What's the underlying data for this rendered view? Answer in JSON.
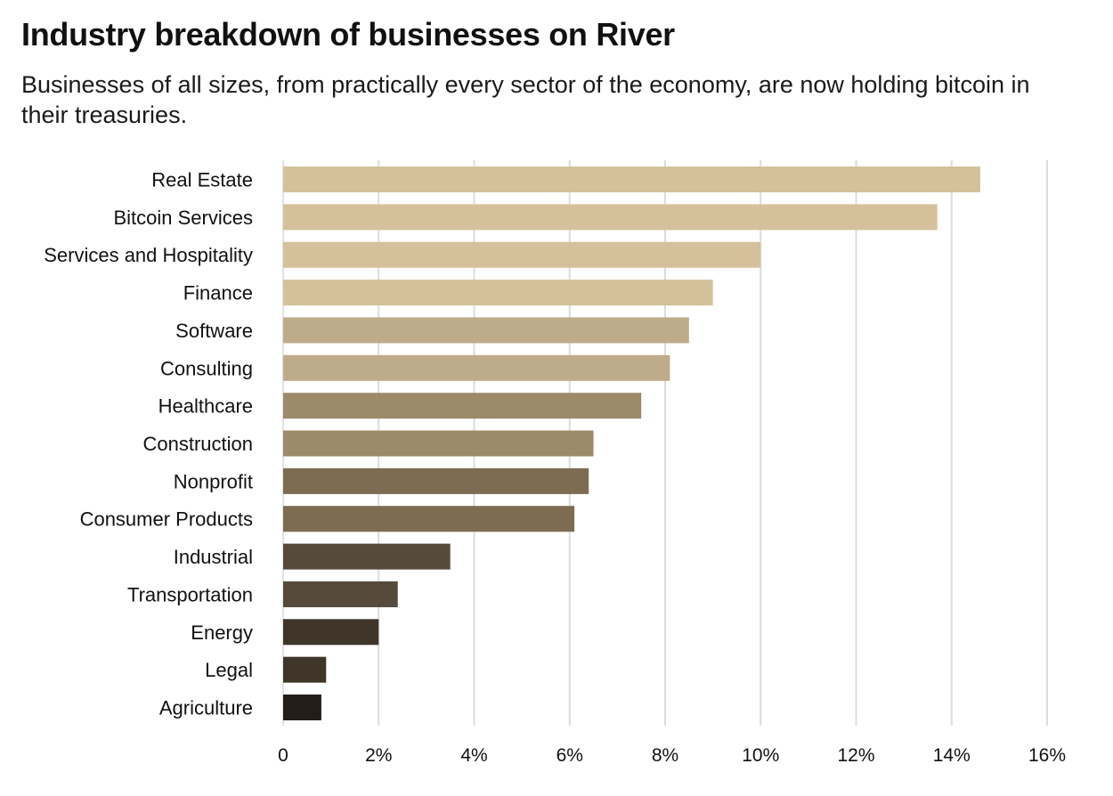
{
  "header": {
    "title": "Industry breakdown of businesses on River",
    "subtitle": "Businesses of all sizes, from practically every sector of the economy, are now holding bitcoin in their treasuries."
  },
  "chart_data": {
    "type": "bar",
    "orientation": "horizontal",
    "title": "Industry breakdown of businesses on River",
    "subtitle": "Businesses of all sizes, from practically every sector of the economy, are now holding bitcoin in their treasuries.",
    "xlabel": "",
    "ylabel": "",
    "xlim": [
      0,
      16
    ],
    "grid": true,
    "unit": "%",
    "categories": [
      "Real Estate",
      "Bitcoin Services",
      "Services and Hospitality",
      "Finance",
      "Software",
      "Consulting",
      "Healthcare",
      "Construction",
      "Nonprofit",
      "Consumer Products",
      "Industrial",
      "Transportation",
      "Energy",
      "Legal",
      "Agriculture"
    ],
    "values": [
      14.6,
      13.7,
      10.0,
      9.0,
      8.5,
      8.1,
      7.5,
      6.5,
      6.4,
      6.1,
      3.5,
      2.4,
      2.0,
      0.9,
      0.8
    ],
    "colors": [
      "#D4C19B",
      "#D4C19B",
      "#D4C19B",
      "#D4C19B",
      "#BEAB8A",
      "#BEAB8A",
      "#9C8A6B",
      "#9C8A6B",
      "#7D6B52",
      "#7D6B52",
      "#554A3B",
      "#554A3B",
      "#3F3529",
      "#3F3529",
      "#221D17"
    ],
    "ticks": [
      {
        "value": 0,
        "label": "0"
      },
      {
        "value": 2,
        "label": "2%"
      },
      {
        "value": 4,
        "label": "4%"
      },
      {
        "value": 6,
        "label": "6%"
      },
      {
        "value": 8,
        "label": "8%"
      },
      {
        "value": 10,
        "label": "10%"
      },
      {
        "value": 12,
        "label": "12%"
      },
      {
        "value": 14,
        "label": "14%"
      },
      {
        "value": 16,
        "label": "16%"
      }
    ],
    "gridline_color": "#DCDCDC",
    "axis_color": "#E2E2E2"
  }
}
